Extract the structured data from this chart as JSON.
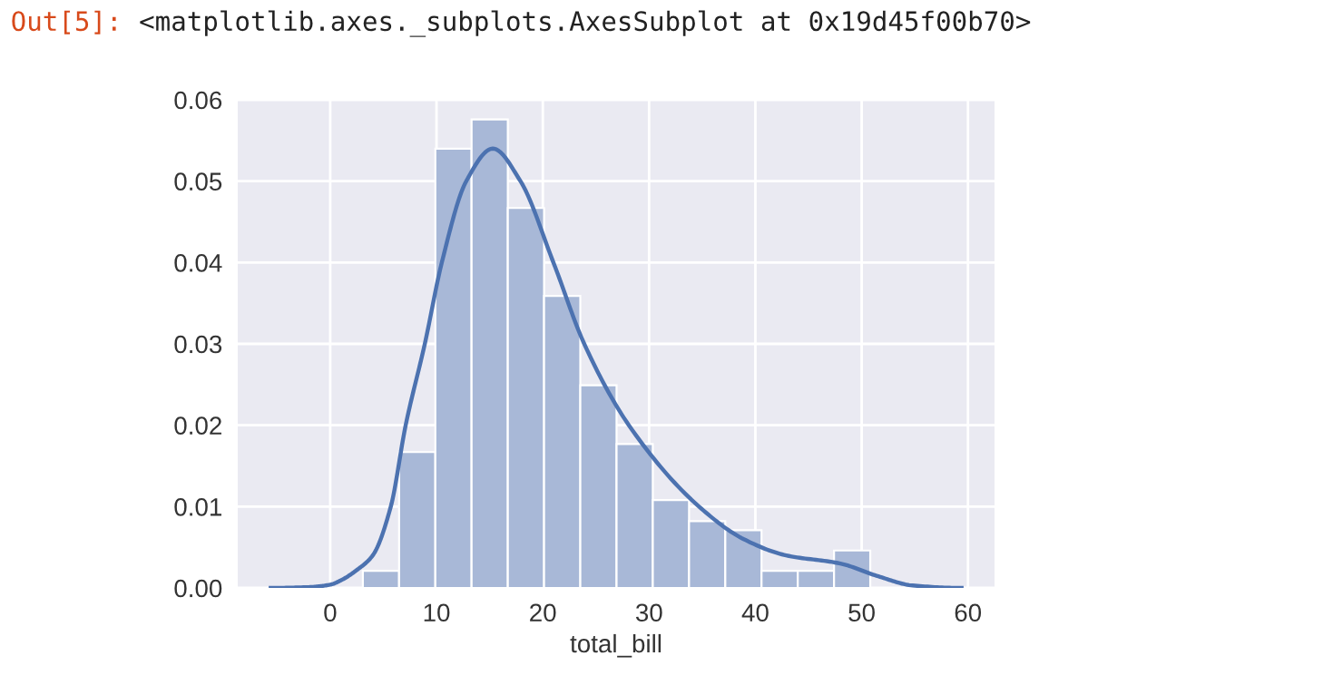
{
  "chart_data": {
    "type": "histogram",
    "xlabel": "total_bill",
    "annotations": [
      "Out[5]:",
      "<matplotlib.axes._subplots.AxesSubplot at 0x19d45f00b70>"
    ],
    "series": [
      {
        "color": "#a8b8d7",
        "bins": [
          3.07,
          6.48,
          9.89,
          13.3,
          16.71,
          20.12,
          23.53,
          26.94,
          30.35,
          33.76,
          37.17,
          40.58,
          43.99,
          47.4,
          50.81
        ],
        "values": [
          0.0021,
          0.0167,
          0.054,
          0.0576,
          0.0467,
          0.0359,
          0.0249,
          0.0177,
          0.0108,
          0.0082,
          0.0071,
          0.0021,
          0.0021,
          0.0046
        ]
      },
      {
        "type": "line",
        "color": "#4c72b0",
        "x": [
          -5.6,
          -2,
          0,
          1.1,
          2.5,
          4.0,
          5.7,
          7.1,
          8.9,
          10.5,
          12.8,
          15.3,
          17.9,
          21.0,
          23.9,
          28.1,
          34.7,
          38.9,
          42.9,
          48,
          51.4,
          54.8,
          59.4
        ],
        "values": [
          0,
          0.0001,
          0.0004,
          0.001,
          0.0022,
          0.004,
          0.01,
          0.02,
          0.03,
          0.04,
          0.05,
          0.054,
          0.05,
          0.04,
          0.03,
          0.02,
          0.01,
          0.006,
          0.004,
          0.003,
          0.0015,
          0.0003,
          0
        ]
      }
    ],
    "xlim": [
      -8.7,
      62.5
    ],
    "xticks": [
      0,
      10,
      20,
      30,
      40,
      50,
      60
    ],
    "ylim": [
      0,
      0.06
    ],
    "yticks": [
      {
        "value": 0,
        "label": "0.00"
      },
      {
        "value": 0.01,
        "label": "0.01"
      },
      {
        "value": 0.02,
        "label": "0.02"
      },
      {
        "value": 0.03,
        "label": "0.03"
      },
      {
        "value": 0.04,
        "label": "0.04"
      },
      {
        "value": 0.05,
        "label": "0.05"
      },
      {
        "value": 0.06,
        "label": "0.06"
      }
    ],
    "grid": true
  }
}
